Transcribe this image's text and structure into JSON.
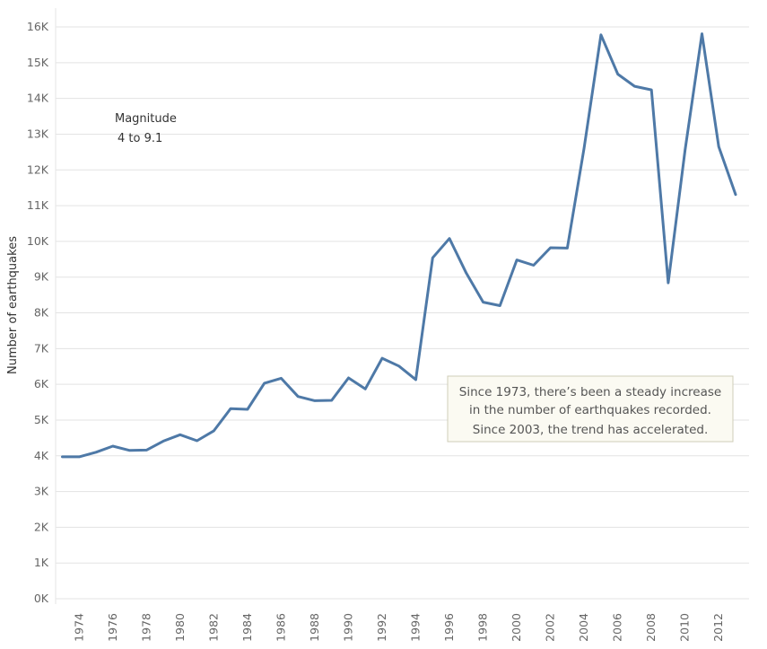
{
  "chart_data": {
    "type": "line",
    "ylabel": "Number of earthquakes",
    "xlabel": "",
    "ylim": [
      0,
      16200
    ],
    "xlim": [
      1972.6,
      2013.8
    ],
    "y_ticks": [
      0,
      1000,
      2000,
      3000,
      4000,
      5000,
      6000,
      7000,
      8000,
      9000,
      10000,
      11000,
      12000,
      13000,
      14000,
      15000,
      16000
    ],
    "y_tick_labels": [
      "0K",
      "1K",
      "2K",
      "3K",
      "4K",
      "5K",
      "6K",
      "7K",
      "8K",
      "9K",
      "10K",
      "11K",
      "12K",
      "13K",
      "14K",
      "15K",
      "16K"
    ],
    "x_ticks": [
      1974,
      1976,
      1978,
      1980,
      1982,
      1984,
      1986,
      1988,
      1990,
      1992,
      1994,
      1996,
      1998,
      2000,
      2002,
      2004,
      2006,
      2008,
      2010,
      2012
    ],
    "x_tick_labels": [
      "1974",
      "1976",
      "1978",
      "1980",
      "1982",
      "1984",
      "1986",
      "1988",
      "1990",
      "1992",
      "1994",
      "1996",
      "1998",
      "2000",
      "2002",
      "2004",
      "2006",
      "2008",
      "2010",
      "2012"
    ],
    "grid": "horizontal",
    "line_color": "#4e79a7",
    "series": [
      {
        "x": [
          1973,
          1974,
          1975,
          1976,
          1977,
          1978,
          1979,
          1980,
          1981,
          1982,
          1983,
          1984,
          1985,
          1986,
          1987,
          1988,
          1989,
          1990,
          1991,
          1992,
          1993,
          1994,
          1995,
          1996,
          1997,
          1998,
          1999,
          2000,
          2001,
          2002,
          2003,
          2004,
          2005,
          2006,
          2007,
          2008,
          2009,
          2010,
          2011,
          2012,
          2013
        ],
        "values": [
          3970,
          3970,
          4100,
          4270,
          4150,
          4160,
          4410,
          4590,
          4420,
          4700,
          5320,
          5300,
          6030,
          6170,
          5660,
          5540,
          5550,
          6180,
          5870,
          6730,
          6510,
          6130,
          9540,
          10080,
          9110,
          8300,
          8200,
          9480,
          9330,
          9820,
          9810,
          12610,
          15780,
          14680,
          14340,
          14240,
          8840,
          12560,
          15810,
          12650,
          11310
        ]
      }
    ],
    "legend": {
      "title": "Magnitude",
      "value": "4 to 9.1",
      "placement": "top-left"
    },
    "annotation": {
      "lines": [
        "Since 1973, there’s been a steady increase",
        "in the number of earthquakes recorded.",
        "Since 2003, the trend has accelerated."
      ],
      "background": "#fbfaf2",
      "border": "#cfcdb8"
    }
  }
}
